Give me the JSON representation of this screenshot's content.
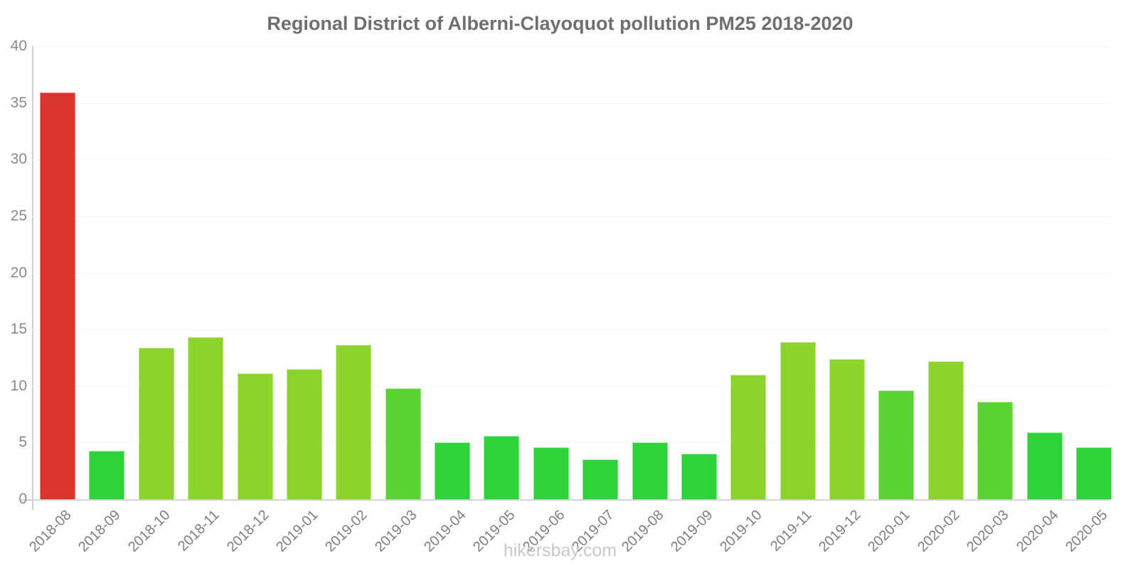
{
  "title": "Regional District of Alberni-Clayoquot pollution PM25 2018-2020",
  "watermark": "hikersbay.com",
  "colors": {
    "severe_red": "#d9342e",
    "low_green": "#2ed33a",
    "medium_green": "#5cd335",
    "high_yellow_green": "#8cd32d",
    "title_text": "#6f6f6f",
    "axis_text": "#8a8a8a",
    "axis_line": "#cfcfcf",
    "gridline": "#f4f4f4",
    "watermark_text": "#c9c9c9"
  },
  "chart_data": {
    "type": "bar",
    "title": "Regional District of Alberni-Clayoquot pollution PM25 2018-2020",
    "xlabel": "",
    "ylabel": "",
    "ylim": [
      0,
      40
    ],
    "yticks": [
      40,
      35,
      30,
      25,
      20,
      15,
      10,
      5,
      0
    ],
    "grid": true,
    "legend": false,
    "categories": [
      "2018-08",
      "2018-09",
      "2018-10",
      "2018-11",
      "2018-12",
      "2019-01",
      "2019-02",
      "2019-03",
      "2019-04",
      "2019-05",
      "2019-06",
      "2019-07",
      "2019-08",
      "2019-09",
      "2019-10",
      "2019-11",
      "2019-12",
      "2020-01",
      "2020-02",
      "2020-03",
      "2020-04",
      "2020-05"
    ],
    "values": [
      35.9,
      4.3,
      13.4,
      14.3,
      11.1,
      11.5,
      13.6,
      9.8,
      5.0,
      5.6,
      4.6,
      3.5,
      5.0,
      4.0,
      11.0,
      13.9,
      12.4,
      9.6,
      12.2,
      8.6,
      5.9,
      4.6
    ],
    "bar_colors": [
      "#d9342e",
      "#2ed33a",
      "#8cd32d",
      "#8cd32d",
      "#8cd32d",
      "#8cd32d",
      "#8cd32d",
      "#5cd335",
      "#2ed33a",
      "#2ed33a",
      "#2ed33a",
      "#2ed33a",
      "#2ed33a",
      "#2ed33a",
      "#8cd32d",
      "#8cd32d",
      "#8cd32d",
      "#5cd335",
      "#8cd32d",
      "#5cd335",
      "#2ed33a",
      "#2ed33a"
    ]
  }
}
